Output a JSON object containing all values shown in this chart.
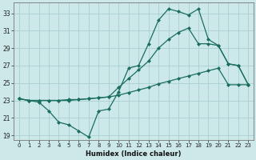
{
  "xlabel": "Humidex (Indice chaleur)",
  "background_color": "#cce8e8",
  "grid_color": "#aacfcf",
  "line_color": "#1a6e5e",
  "xlim": [
    -0.5,
    23.5
  ],
  "ylim": [
    18.5,
    34.2
  ],
  "xticks": [
    0,
    1,
    2,
    3,
    4,
    5,
    6,
    7,
    8,
    9,
    10,
    11,
    12,
    13,
    14,
    15,
    16,
    17,
    18,
    19,
    20,
    21,
    22,
    23
  ],
  "yticks": [
    19,
    21,
    23,
    25,
    27,
    29,
    31,
    33
  ],
  "line1_x": [
    0,
    1,
    2,
    3,
    4,
    5,
    6,
    7,
    8,
    9,
    10,
    11,
    12,
    13,
    14,
    15,
    16,
    17,
    18,
    19,
    20,
    21,
    22,
    23
  ],
  "line1_y": [
    23.2,
    23.0,
    22.8,
    21.8,
    20.5,
    20.2,
    19.5,
    18.8,
    21.8,
    22.0,
    24.0,
    26.7,
    27.0,
    29.5,
    32.2,
    33.5,
    33.2,
    32.8,
    33.5,
    30.0,
    29.3,
    27.2,
    27.0,
    24.8
  ],
  "line2_x": [
    0,
    1,
    2,
    3,
    4,
    5,
    6,
    7,
    8,
    9,
    10,
    11,
    12,
    13,
    14,
    15,
    16,
    17,
    18,
    19,
    20,
    21,
    22,
    23
  ],
  "line2_y": [
    23.2,
    23.0,
    23.0,
    23.0,
    23.0,
    23.0,
    23.1,
    23.2,
    23.3,
    23.4,
    24.5,
    25.5,
    26.5,
    27.5,
    29.0,
    30.0,
    30.8,
    31.3,
    29.5,
    29.5,
    29.3,
    27.2,
    27.0,
    24.8
  ],
  "line3_x": [
    0,
    1,
    2,
    3,
    4,
    5,
    6,
    7,
    8,
    9,
    10,
    11,
    12,
    13,
    14,
    15,
    16,
    17,
    18,
    19,
    20,
    21,
    22,
    23
  ],
  "line3_y": [
    23.2,
    23.0,
    23.0,
    23.0,
    23.0,
    23.1,
    23.1,
    23.2,
    23.3,
    23.4,
    23.6,
    23.9,
    24.2,
    24.5,
    24.9,
    25.2,
    25.5,
    25.8,
    26.1,
    26.4,
    26.7,
    24.8,
    24.8,
    24.8
  ]
}
